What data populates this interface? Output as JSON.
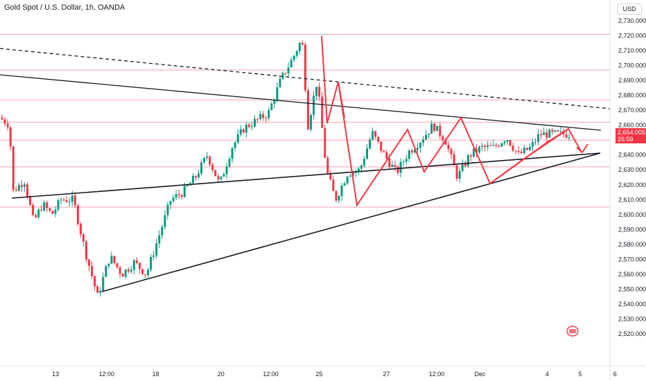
{
  "header": {
    "title": "Gold Spot / U.S. Dollar, 1h, OANDA",
    "currency": "USD"
  },
  "price_tag": {
    "price": "2,654.005",
    "countdown": "26:59"
  },
  "chart_data": {
    "type": "candlestick",
    "ylim": [
      2515,
      2735
    ],
    "y_ticks": [
      "2,730.000",
      "2,720.000",
      "2,710.000",
      "2,700.000",
      "2,690.000",
      "2,680.000",
      "2,670.000",
      "2,660.000",
      "2,650.000",
      "2,640.000",
      "2,630.000",
      "2,620.000",
      "2,610.000",
      "2,600.000",
      "2,590.000",
      "2,580.000",
      "2,570.000",
      "2,560.000",
      "2,550.000",
      "2,540.000",
      "2,530.000",
      "2,520.000"
    ],
    "y_tick_values": [
      2730,
      2720,
      2710,
      2700,
      2690,
      2680,
      2670,
      2660,
      2650,
      2640,
      2630,
      2620,
      2610,
      2600,
      2590,
      2580,
      2570,
      2560,
      2550,
      2540,
      2530,
      2520
    ],
    "x_labels": [
      "13",
      "12:00",
      "18",
      "20",
      "12:00",
      "25",
      "27",
      "12:00",
      "Dec",
      "4",
      "5",
      "6"
    ],
    "x_label_positions": [
      0.086,
      0.165,
      0.241,
      0.342,
      0.419,
      0.494,
      0.598,
      0.676,
      0.743,
      0.847,
      0.898,
      0.952
    ],
    "horizontal_levels": [
      2721,
      2697,
      2677,
      2662,
      2650,
      2632,
      2605
    ],
    "colors": {
      "up": "#089981",
      "down": "#f23645",
      "level_line": "#f7a1ac",
      "trend_line": "#131722",
      "zigzag": "#f23645"
    },
    "key_prices": [
      {
        "label": "low",
        "value": 2540
      },
      {
        "label": "high",
        "value": 2721
      },
      {
        "label": "current",
        "value": 2654
      }
    ],
    "series_path": [
      {
        "x": 0.0,
        "y": 2665
      },
      {
        "x": 0.016,
        "y": 2660
      },
      {
        "x": 0.02,
        "y": 2615
      },
      {
        "x": 0.04,
        "y": 2623
      },
      {
        "x": 0.055,
        "y": 2595
      },
      {
        "x": 0.07,
        "y": 2607
      },
      {
        "x": 0.085,
        "y": 2600
      },
      {
        "x": 0.1,
        "y": 2610
      },
      {
        "x": 0.12,
        "y": 2610
      },
      {
        "x": 0.14,
        "y": 2575
      },
      {
        "x": 0.16,
        "y": 2545
      },
      {
        "x": 0.18,
        "y": 2572
      },
      {
        "x": 0.2,
        "y": 2560
      },
      {
        "x": 0.22,
        "y": 2568
      },
      {
        "x": 0.24,
        "y": 2560
      },
      {
        "x": 0.26,
        "y": 2585
      },
      {
        "x": 0.28,
        "y": 2610
      },
      {
        "x": 0.3,
        "y": 2615
      },
      {
        "x": 0.32,
        "y": 2625
      },
      {
        "x": 0.34,
        "y": 2640
      },
      {
        "x": 0.36,
        "y": 2620
      },
      {
        "x": 0.38,
        "y": 2645
      },
      {
        "x": 0.4,
        "y": 2658
      },
      {
        "x": 0.42,
        "y": 2663
      },
      {
        "x": 0.44,
        "y": 2668
      },
      {
        "x": 0.46,
        "y": 2690
      },
      {
        "x": 0.48,
        "y": 2705
      },
      {
        "x": 0.495,
        "y": 2718
      },
      {
        "x": 0.505,
        "y": 2660
      },
      {
        "x": 0.52,
        "y": 2690
      },
      {
        "x": 0.535,
        "y": 2630
      },
      {
        "x": 0.55,
        "y": 2610
      },
      {
        "x": 0.57,
        "y": 2628
      },
      {
        "x": 0.59,
        "y": 2630
      },
      {
        "x": 0.61,
        "y": 2655
      },
      {
        "x": 0.63,
        "y": 2640
      },
      {
        "x": 0.65,
        "y": 2628
      },
      {
        "x": 0.67,
        "y": 2642
      },
      {
        "x": 0.69,
        "y": 2650
      },
      {
        "x": 0.71,
        "y": 2660
      },
      {
        "x": 0.73,
        "y": 2650
      },
      {
        "x": 0.75,
        "y": 2625
      },
      {
        "x": 0.77,
        "y": 2640
      },
      {
        "x": 0.79,
        "y": 2645
      },
      {
        "x": 0.81,
        "y": 2645
      },
      {
        "x": 0.83,
        "y": 2652
      },
      {
        "x": 0.85,
        "y": 2640
      },
      {
        "x": 0.87,
        "y": 2645
      },
      {
        "x": 0.885,
        "y": 2654
      }
    ]
  }
}
